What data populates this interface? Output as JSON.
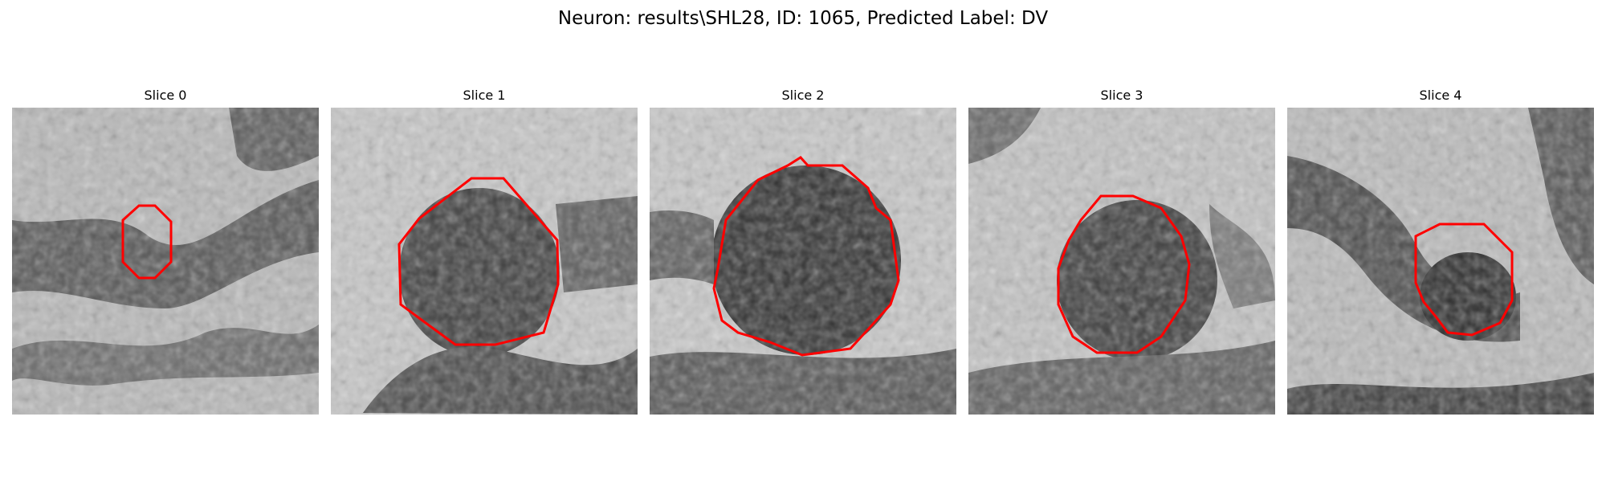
{
  "figure": {
    "title": "Neuron: results\\SHL28, ID: 1065, Predicted Label: DV"
  },
  "slices": [
    {
      "label": "Slice 0"
    },
    {
      "label": "Slice 1"
    },
    {
      "label": "Slice 2"
    },
    {
      "label": "Slice 3"
    },
    {
      "label": "Slice 4"
    }
  ],
  "colors": {
    "contour": "#ff0000"
  }
}
